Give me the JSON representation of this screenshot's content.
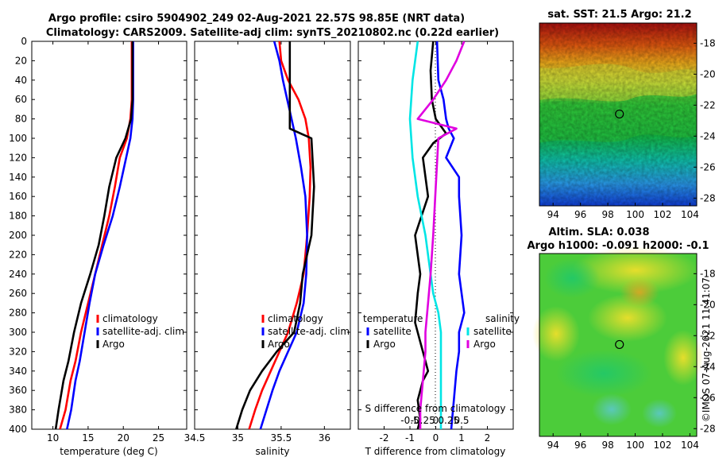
{
  "header": {
    "title_line1": "Argo profile: csiro 5904902_249 02-Aug-2021 22.57S 98.85E (NRT data)",
    "title_line2": "Climatology: CARS2009. Satellite-adj clim: synTS_20210802.nc (0.22d earlier)"
  },
  "maps": {
    "sst_title": "sat. SST: 21.5 Argo: 21.2",
    "sla_title1": "Altim. SLA: 0.038",
    "sla_title2": "Argo h1000: -0.091 h2000: -0.1",
    "copyright": "©IMOS 07-Aug-2021 11:41:07",
    "lon_ticks": [
      "94",
      "96",
      "98",
      "100",
      "102",
      "104"
    ],
    "lat_ticks": [
      "-18",
      "-20",
      "-22",
      "-24",
      "-26",
      "-28"
    ],
    "float_position": {
      "lon": 98.85,
      "lat": -22.57
    },
    "lon_range": [
      93,
      104.5
    ],
    "lat_range": [
      -28.5,
      -16.7
    ]
  },
  "colors": {
    "climatology": "#ff0000",
    "satellite": "#0000ff",
    "argo": "#000000",
    "salinity_satellite": "#00e5e5",
    "salinity_argo": "#e000e0"
  },
  "chart_data": [
    {
      "type": "line",
      "name": "temperature",
      "xlabel": "temperature (deg C)",
      "ylabel": "",
      "xlim": [
        7,
        29
      ],
      "ylim": [
        400,
        0
      ],
      "xticks": [
        "10",
        "15",
        "20",
        "25"
      ],
      "yticks": [
        "0",
        "20",
        "40",
        "60",
        "80",
        "100",
        "120",
        "140",
        "160",
        "180",
        "200",
        "220",
        "240",
        "260",
        "280",
        "300",
        "320",
        "340",
        "360",
        "380",
        "400"
      ],
      "legend": [
        "climatology",
        "satellite-adj. clim",
        "Argo"
      ],
      "legend_position": "lower-right",
      "series": [
        {
          "name": "climatology",
          "x": [
            21.2,
            21.2,
            21.2,
            21.0,
            20.5,
            19.5,
            18.8,
            18.0,
            17.0,
            16.0,
            15.0,
            14.0,
            13.2,
            12.5,
            11.8,
            11.0
          ],
          "y": [
            0,
            20,
            60,
            80,
            100,
            120,
            150,
            180,
            210,
            240,
            270,
            300,
            330,
            350,
            380,
            400
          ]
        },
        {
          "name": "satellite-adj. clim",
          "x": [
            21.4,
            21.4,
            21.4,
            21.3,
            21.0,
            20.4,
            19.5,
            18.5,
            17.2,
            16.0,
            15.2,
            14.5,
            13.8,
            13.2,
            12.6,
            12.0
          ],
          "y": [
            0,
            20,
            60,
            80,
            100,
            120,
            150,
            180,
            210,
            240,
            270,
            300,
            330,
            350,
            380,
            400
          ]
        },
        {
          "name": "Argo",
          "x": [
            21.3,
            21.3,
            21.3,
            21.1,
            20.3,
            19.0,
            18.0,
            17.3,
            16.5,
            15.3,
            14.0,
            13.0,
            12.2,
            11.5,
            10.8,
            10.4
          ],
          "y": [
            0,
            20,
            60,
            80,
            100,
            120,
            150,
            180,
            210,
            240,
            270,
            300,
            330,
            350,
            380,
            400
          ]
        }
      ]
    },
    {
      "type": "line",
      "name": "salinity",
      "xlabel": "salinity",
      "ylabel": "",
      "xlim": [
        34.5,
        36.3
      ],
      "ylim": [
        400,
        0
      ],
      "xticks": [
        "34.5",
        "35",
        "35.5",
        "36"
      ],
      "legend": [
        "climatology",
        "satellite-adj. clim",
        "Argo"
      ],
      "legend_position": "lower-right",
      "series": [
        {
          "name": "climatology",
          "x": [
            35.48,
            35.5,
            35.58,
            35.7,
            35.78,
            35.82,
            35.84,
            35.83,
            35.8,
            35.76,
            35.68,
            35.58,
            35.48,
            35.38,
            35.28,
            35.2,
            35.13
          ],
          "y": [
            0,
            20,
            40,
            60,
            80,
            100,
            130,
            160,
            200,
            240,
            270,
            300,
            320,
            340,
            360,
            380,
            400
          ]
        },
        {
          "name": "satellite-adj. clim",
          "x": [
            35.42,
            35.48,
            35.52,
            35.57,
            35.62,
            35.67,
            35.73,
            35.78,
            35.8,
            35.79,
            35.76,
            35.68,
            35.58,
            35.48,
            35.4,
            35.33,
            35.26
          ],
          "y": [
            0,
            20,
            40,
            60,
            80,
            100,
            130,
            160,
            200,
            240,
            270,
            300,
            320,
            340,
            360,
            380,
            400
          ]
        },
        {
          "name": "Argo",
          "x": [
            35.6,
            35.6,
            35.6,
            35.6,
            35.6,
            35.6,
            35.85,
            35.88,
            35.85,
            35.75,
            35.72,
            35.65,
            35.45,
            35.28,
            35.14,
            35.05,
            34.98
          ],
          "y": [
            0,
            20,
            40,
            60,
            80,
            90,
            100,
            150,
            200,
            240,
            270,
            300,
            320,
            340,
            360,
            380,
            400
          ]
        }
      ]
    },
    {
      "type": "line",
      "name": "difference",
      "xlabel": "T difference from climatology",
      "xlabel_top": "S difference from climatology",
      "xlim": [
        -3,
        3
      ],
      "ylim": [
        400,
        0
      ],
      "xticks": [
        "-2",
        "-1",
        "0",
        "1",
        "2"
      ],
      "xticks_salinity": [
        "-0.5",
        "-0.25",
        "0",
        "0.25",
        "0.5"
      ],
      "legend_temperature_title": "temperature",
      "legend_salinity_title": "salinity",
      "legend_temperature": [
        "satellite",
        "Argo"
      ],
      "legend_salinity": [
        "satellite",
        "Argo"
      ],
      "series": [
        {
          "name": "temperature satellite",
          "x": [
            0.05,
            0.1,
            0.3,
            0.4,
            0.5,
            0.7,
            0.4,
            0.9,
            0.9,
            1.0,
            0.9,
            1.1,
            0.9,
            0.9,
            0.8,
            0.7,
            0.6
          ],
          "y": [
            0,
            40,
            60,
            80,
            90,
            100,
            120,
            140,
            160,
            200,
            240,
            280,
            300,
            320,
            340,
            370,
            400
          ]
        },
        {
          "name": "temperature Argo",
          "x": [
            -0.1,
            -0.2,
            -0.15,
            0.0,
            0.4,
            -0.1,
            -0.5,
            -0.3,
            -0.8,
            -0.6,
            -0.7,
            -0.8,
            -0.6,
            -0.5,
            -0.3,
            -0.5,
            -0.7,
            -0.6,
            -0.7
          ],
          "y": [
            0,
            30,
            60,
            80,
            95,
            105,
            120,
            160,
            200,
            240,
            260,
            290,
            310,
            320,
            340,
            350,
            370,
            390,
            400
          ]
        },
        {
          "name": "salinity satellite",
          "x": [
            -0.35,
            -0.45,
            -0.5,
            -0.45,
            -0.35,
            -0.2,
            -0.1,
            -0.05,
            0.05,
            0.1,
            0.1,
            0.1,
            0.1,
            0.1,
            0.1
          ],
          "y": [
            0,
            40,
            80,
            120,
            160,
            200,
            240,
            260,
            280,
            300,
            320,
            340,
            360,
            380,
            400
          ]
        },
        {
          "name": "salinity Argo",
          "x": [
            0.55,
            0.4,
            0.2,
            -0.05,
            -0.35,
            0.4,
            0.05,
            0.0,
            -0.05,
            -0.1,
            -0.15,
            -0.2,
            -0.2,
            -0.25,
            -0.3,
            -0.3
          ],
          "y": [
            0,
            20,
            40,
            60,
            80,
            90,
            100,
            150,
            200,
            240,
            270,
            300,
            320,
            350,
            380,
            400
          ]
        }
      ]
    }
  ]
}
